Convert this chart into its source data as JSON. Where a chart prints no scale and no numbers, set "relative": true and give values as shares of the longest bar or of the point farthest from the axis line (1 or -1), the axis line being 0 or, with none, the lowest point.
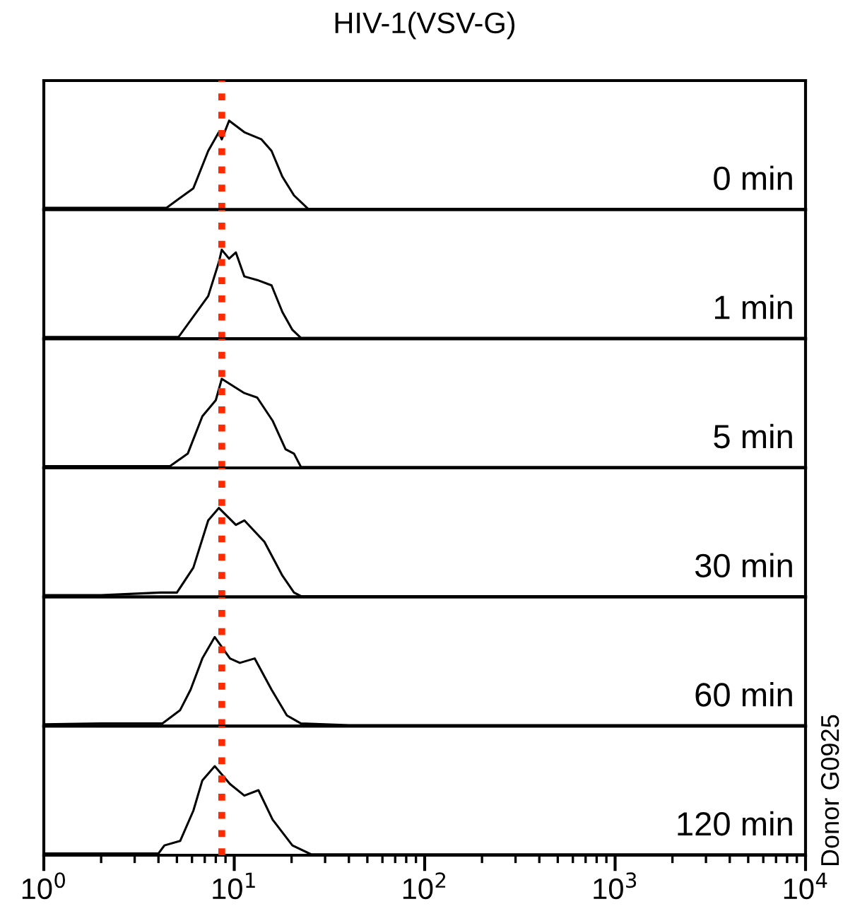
{
  "chart_data": [
    {
      "type": "line",
      "title": "HIV-1(VSV-G)",
      "relative": true,
      "xlim": [
        1,
        10000
      ],
      "log": "x",
      "tick_labels": false,
      "annotations": [
        "0 min"
      ],
      "ref_lines": [
        {
          "axis": "x",
          "value": 8.6,
          "color": "#ff2a00",
          "line_style": "dotted"
        }
      ],
      "series": [
        {
          "color": "#000000",
          "x": [
            1,
            2,
            4.4,
            6.1,
            7.3,
            8.3,
            8.6,
            9.4,
            11.3,
            13.9,
            15.7,
            17.9,
            20.6,
            24.4,
            40,
            100,
            10000
          ],
          "values": [
            0.02,
            0.02,
            0.02,
            0.24,
            0.66,
            0.87,
            0.79,
            1.0,
            0.87,
            0.79,
            0.66,
            0.37,
            0.16,
            0.01,
            0.01,
            0.01,
            0.01
          ]
        }
      ]
    },
    {
      "type": "line",
      "relative": true,
      "xlim": [
        1,
        10000
      ],
      "log": "x",
      "tick_labels": false,
      "annotations": [
        "1 min"
      ],
      "ref_lines": [
        {
          "axis": "x",
          "value": 8.6,
          "color": "#ff2a00",
          "line_style": "dotted"
        }
      ],
      "series": [
        {
          "color": "#000000",
          "x": [
            1,
            2,
            5.1,
            7.3,
            8.3,
            8.6,
            9.4,
            10.2,
            11.3,
            13.2,
            15.7,
            17.9,
            20.2,
            22.4,
            40,
            100,
            10000
          ],
          "values": [
            0.02,
            0.02,
            0.02,
            0.48,
            0.86,
            1.0,
            0.9,
            0.97,
            0.7,
            0.66,
            0.6,
            0.3,
            0.1,
            0.01,
            0.01,
            0.01,
            0.01
          ]
        }
      ]
    },
    {
      "type": "line",
      "relative": true,
      "xlim": [
        1,
        10000
      ],
      "log": "x",
      "tick_labels": false,
      "annotations": [
        "5 min"
      ],
      "ref_lines": [
        {
          "axis": "x",
          "value": 8.6,
          "color": "#ff2a00",
          "line_style": "dotted"
        }
      ],
      "series": [
        {
          "color": "#000000",
          "x": [
            1,
            2,
            4.6,
            5.7,
            6.8,
            8.0,
            8.6,
            11.3,
            13.2,
            15.9,
            18.6,
            20.6,
            22.4,
            40,
            100,
            10000
          ],
          "values": [
            0.02,
            0.02,
            0.02,
            0.16,
            0.58,
            0.76,
            1.0,
            0.84,
            0.79,
            0.53,
            0.21,
            0.16,
            0.01,
            0.01,
            0.01,
            0.01
          ]
        }
      ]
    },
    {
      "type": "line",
      "relative": true,
      "xlim": [
        1,
        10000
      ],
      "log": "x",
      "tick_labels": false,
      "annotations": [
        "30 min"
      ],
      "ref_lines": [
        {
          "axis": "x",
          "value": 8.6,
          "color": "#ff2a00",
          "line_style": "dotted"
        }
      ],
      "series": [
        {
          "color": "#000000",
          "x": [
            1,
            2,
            4.1,
            5.0,
            6.1,
            7.3,
            8.3,
            10.2,
            11.3,
            14.4,
            17.9,
            20.6,
            22.4,
            40,
            100,
            10000
          ],
          "values": [
            0.02,
            0.02,
            0.05,
            0.05,
            0.33,
            0.86,
            1.0,
            0.81,
            0.86,
            0.62,
            0.24,
            0.05,
            0.01,
            0.01,
            0.01,
            0.01
          ]
        }
      ]
    },
    {
      "type": "line",
      "relative": true,
      "xlim": [
        1,
        10000
      ],
      "log": "x",
      "tick_labels": false,
      "annotations": [
        "60 min"
      ],
      "ref_lines": [
        {
          "axis": "x",
          "value": 8.6,
          "color": "#ff2a00",
          "line_style": "dotted"
        }
      ],
      "series": [
        {
          "color": "#000000",
          "x": [
            1,
            2,
            4.2,
            5.2,
            5.9,
            6.8,
            7.9,
            9.5,
            10.7,
            12.8,
            15.7,
            18.9,
            22.4,
            40,
            100,
            10000
          ],
          "values": [
            0.02,
            0.03,
            0.03,
            0.18,
            0.41,
            0.76,
            1.0,
            0.76,
            0.71,
            0.76,
            0.41,
            0.12,
            0.03,
            0.01,
            0.01,
            0.01
          ]
        }
      ]
    },
    {
      "type": "line",
      "relative": true,
      "xlim": [
        1,
        10000
      ],
      "log": "x",
      "tick_labels": "x",
      "xticks": [
        {
          "value": 1,
          "label": "10$^{0}$"
        },
        {
          "value": 10,
          "label": "10$^{1}$"
        },
        {
          "value": 100,
          "label": "10$^{2}$"
        },
        {
          "value": 1000,
          "label": "10$^{3}$"
        },
        {
          "value": 10000,
          "label": "10$^{4}$"
        }
      ],
      "annotations": [
        "120 min",
        "Donor G0925"
      ],
      "ref_lines": [
        {
          "axis": "x",
          "value": 8.6,
          "color": "#ff2a00",
          "line_style": "dotted"
        }
      ],
      "series": [
        {
          "color": "#000000",
          "x": [
            1,
            2,
            4.0,
            4.3,
            5.2,
            6.1,
            6.8,
            7.9,
            9.5,
            11.3,
            13.4,
            15.9,
            20.2,
            25.3,
            40,
            100,
            10000
          ],
          "values": [
            0.02,
            0.02,
            0.02,
            0.11,
            0.16,
            0.5,
            0.84,
            1.0,
            0.8,
            0.67,
            0.73,
            0.4,
            0.11,
            0.01,
            0.01,
            0.01,
            0.01
          ]
        }
      ]
    }
  ]
}
